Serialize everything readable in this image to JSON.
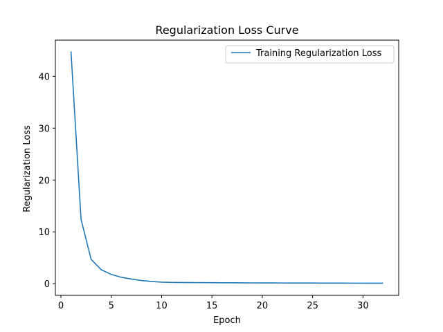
{
  "chart_data": {
    "type": "line",
    "title": "Regularization Loss Curve",
    "xlabel": "Epoch",
    "ylabel": "Regularization Loss",
    "xlim": [
      -0.55,
      33.55
    ],
    "ylim": [
      -2.24,
      46.98
    ],
    "x_ticks": [
      0,
      5,
      10,
      15,
      20,
      25,
      30
    ],
    "y_ticks": [
      0,
      10,
      20,
      30,
      40
    ],
    "grid": false,
    "legend_position": "top-right",
    "colors": {
      "series": "#1f77b4",
      "axes": "#000000"
    },
    "series": [
      {
        "name": "Training Regularization Loss",
        "x": [
          1,
          2,
          3,
          4,
          5,
          6,
          7,
          8,
          9,
          10,
          11,
          12,
          13,
          14,
          15,
          16,
          17,
          18,
          19,
          20,
          21,
          22,
          23,
          24,
          25,
          26,
          27,
          28,
          29,
          30,
          31,
          32
        ],
        "y": [
          44.8,
          12.4,
          4.7,
          2.7,
          1.8,
          1.25,
          0.9,
          0.62,
          0.43,
          0.3,
          0.25,
          0.23,
          0.22,
          0.21,
          0.2,
          0.19,
          0.18,
          0.17,
          0.16,
          0.155,
          0.15,
          0.145,
          0.14,
          0.135,
          0.13,
          0.125,
          0.12,
          0.115,
          0.11,
          0.105,
          0.1,
          0.1
        ]
      }
    ]
  }
}
